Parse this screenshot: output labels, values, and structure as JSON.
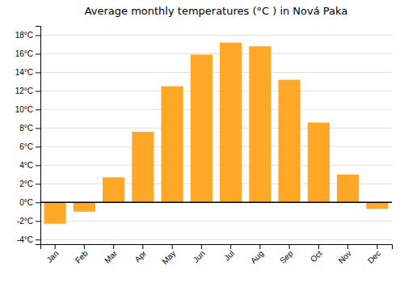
{
  "chart_data": {
    "type": "bar",
    "title": "Average monthly temperatures (°C ) in Nová Paka",
    "categories": [
      "Jan",
      "Feb",
      "Mar",
      "Apr",
      "May",
      "Jun",
      "Jul",
      "Aug",
      "Sep",
      "Oct",
      "Nov",
      "Dec"
    ],
    "values": [
      -2.3,
      -1.0,
      2.7,
      7.6,
      12.5,
      15.9,
      17.2,
      16.8,
      13.2,
      8.6,
      3.0,
      -0.7
    ],
    "color": "#FFA726",
    "ylim": [
      -4.5,
      19
    ],
    "yticks": [
      {
        "value": -4,
        "label": "-4°C"
      },
      {
        "value": -2,
        "label": "-2°C"
      },
      {
        "value": 0,
        "label": "0°C"
      },
      {
        "value": 2,
        "label": "2°C"
      },
      {
        "value": 4,
        "label": "4°C"
      },
      {
        "value": 6,
        "label": "6°C"
      },
      {
        "value": 8,
        "label": "8°C"
      },
      {
        "value": 10,
        "label": "10°C"
      },
      {
        "value": 12,
        "label": "12°C"
      },
      {
        "value": 14,
        "label": "14°C"
      },
      {
        "value": 16,
        "label": "16°C"
      },
      {
        "value": 18,
        "label": "18°C"
      }
    ],
    "grid": true
  }
}
